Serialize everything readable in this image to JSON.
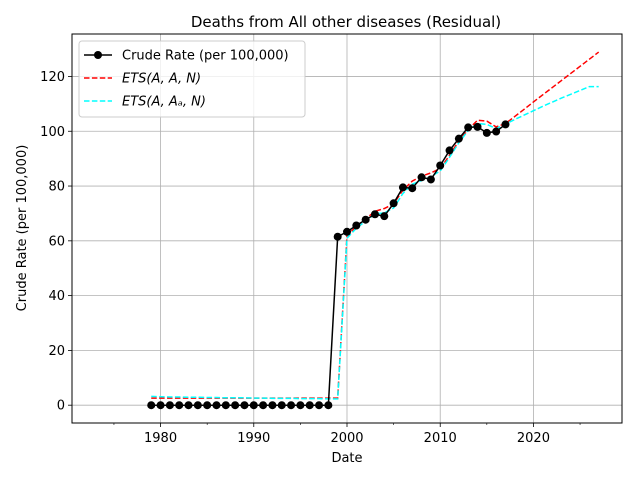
{
  "chart_data": {
    "type": "line",
    "title": "Deaths from All other diseases (Residual)",
    "xlabel": "Date",
    "ylabel": "Crude Rate (per 100,000)",
    "xlim": [
      1970.5,
      2029.5
    ],
    "ylim": [
      -6.5,
      135.5
    ],
    "xticks": [
      1980,
      1990,
      2000,
      2010,
      2020
    ],
    "yticks": [
      0,
      20,
      40,
      60,
      80,
      100,
      120
    ],
    "grid": true,
    "legend_position": "top-left",
    "series": [
      {
        "name": "Crude Rate (per 100,000)",
        "style": "solid-markers",
        "color": "#000000",
        "x": [
          1979,
          1980,
          1981,
          1982,
          1983,
          1984,
          1985,
          1986,
          1987,
          1988,
          1989,
          1990,
          1991,
          1992,
          1993,
          1994,
          1995,
          1996,
          1997,
          1998,
          1999,
          2000,
          2001,
          2002,
          2003,
          2004,
          2005,
          2006,
          2007,
          2008,
          2009,
          2010,
          2011,
          2012,
          2013,
          2014,
          2015,
          2016,
          2017
        ],
        "values": [
          0,
          0,
          0,
          0,
          0,
          0,
          0,
          0,
          0,
          0,
          0,
          0,
          0,
          0,
          0,
          0,
          0,
          0,
          0,
          0,
          61.5,
          63.3,
          65.6,
          67.7,
          69.7,
          69.0,
          73.7,
          79.5,
          79.2,
          83.2,
          82.4,
          87.5,
          93.0,
          97.3,
          101.4,
          101.6,
          99.4,
          99.9,
          102.5
        ]
      },
      {
        "name": "ETS(A, A, N)",
        "style": "dashed",
        "color": "#ff0000",
        "x": [
          1979,
          1980,
          1981,
          1982,
          1983,
          1984,
          1985,
          1986,
          1987,
          1988,
          1989,
          1990,
          1991,
          1992,
          1993,
          1994,
          1995,
          1996,
          1997,
          1998,
          1999,
          2000,
          2001,
          2002,
          2003,
          2004,
          2005,
          2006,
          2007,
          2008,
          2009,
          2010,
          2011,
          2012,
          2013,
          2014,
          2015,
          2016,
          2017,
          2018,
          2019,
          2020,
          2021,
          2022,
          2023,
          2024,
          2025,
          2026,
          2027
        ],
        "values": [
          2.6,
          2.6,
          2.6,
          2.6,
          2.6,
          2.6,
          2.6,
          2.6,
          2.6,
          2.6,
          2.6,
          2.6,
          2.6,
          2.6,
          2.6,
          2.6,
          2.6,
          2.6,
          2.6,
          2.6,
          2.6,
          62.0,
          65.2,
          68.0,
          70.8,
          71.8,
          73.5,
          78.5,
          81.8,
          83.6,
          84.8,
          86.4,
          91.2,
          96.5,
          100.6,
          104.0,
          103.7,
          101.6,
          102.8,
          105.4,
          108.0,
          110.7,
          113.3,
          115.9,
          118.5,
          121.1,
          123.7,
          126.3,
          128.9
        ]
      },
      {
        "name": "ETS(A, A_d, N)",
        "style": "dashed",
        "color": "#00ffff",
        "x": [
          1979,
          1980,
          1981,
          1982,
          1983,
          1984,
          1985,
          1986,
          1987,
          1988,
          1989,
          1990,
          1991,
          1992,
          1993,
          1994,
          1995,
          1996,
          1997,
          1998,
          1999,
          2000,
          2001,
          2002,
          2003,
          2004,
          2005,
          2006,
          2007,
          2008,
          2009,
          2010,
          2011,
          2012,
          2013,
          2014,
          2015,
          2016,
          2017,
          2018,
          2019,
          2020,
          2021,
          2022,
          2023,
          2024,
          2025,
          2026,
          2027
        ],
        "values": [
          3.2,
          3.1,
          3.0,
          3.0,
          2.9,
          2.9,
          2.8,
          2.8,
          2.7,
          2.7,
          2.7,
          2.6,
          2.6,
          2.5,
          2.5,
          2.5,
          2.4,
          2.4,
          2.4,
          2.3,
          2.3,
          61.0,
          64.6,
          67.2,
          69.8,
          70.2,
          72.0,
          77.3,
          80.7,
          82.0,
          83.4,
          85.5,
          90.5,
          95.8,
          100.3,
          102.8,
          102.5,
          101.0,
          102.6,
          104.3,
          105.9,
          107.5,
          109.1,
          110.6,
          112.1,
          113.5,
          114.9,
          116.3,
          116.3
        ]
      }
    ],
    "legend": [
      {
        "label": "Crude Rate (per 100,000)",
        "italic": false
      },
      {
        "label": "ETS(A, A, N)",
        "italic": true
      },
      {
        "label": "ETS(A, Aₐ, N)",
        "italic": true
      }
    ]
  }
}
